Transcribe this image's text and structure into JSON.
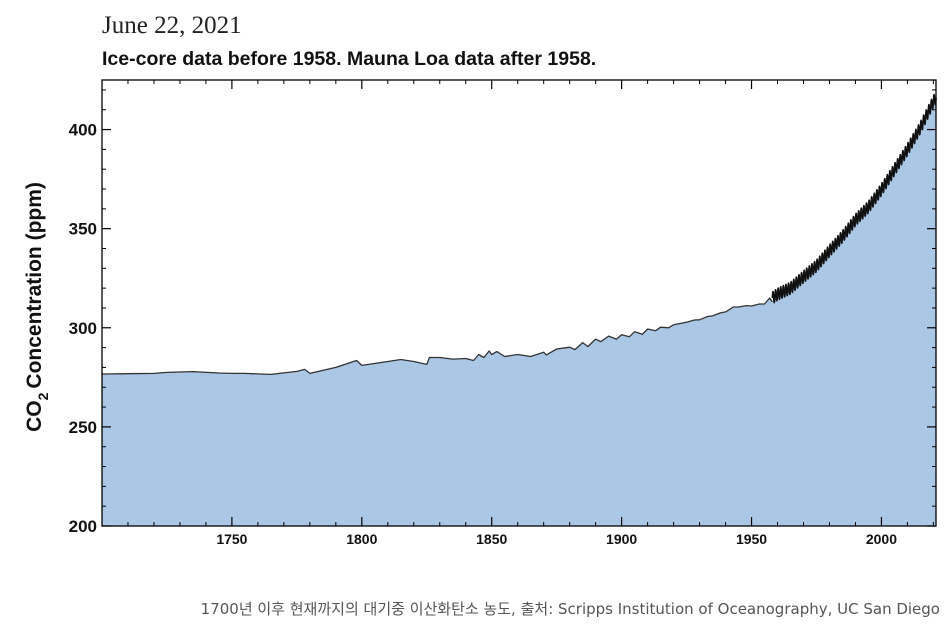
{
  "header": {
    "date": "June 22, 2021"
  },
  "caption": "1700년 이후 현재까지의 대기중 이산화탄소 농도, 출처: Scripps Institution of Oceanography, UC San Diego",
  "colors": {
    "fill": "#abc7e6",
    "line": "#333333",
    "recent_line": "#111111",
    "axis": "#000000"
  },
  "chart_data": {
    "type": "area",
    "title": "Ice-core data before 1958. Mauna Loa data after 1958.",
    "xlabel": "",
    "ylabel": "Concentration (ppm)",
    "ylabel_prefix": "CO",
    "ylabel_subscript": "2",
    "xlim": [
      1700,
      2021
    ],
    "ylim": [
      200,
      425
    ],
    "x_ticks": [
      1750,
      1800,
      1850,
      1900,
      1950,
      2000
    ],
    "y_ticks": [
      200,
      250,
      300,
      350,
      400
    ],
    "grid": false,
    "series": [
      {
        "name": "Ice-core data",
        "x": [
          1700,
          1720,
          1725,
          1735,
          1745,
          1750,
          1755,
          1765,
          1775,
          1778,
          1780,
          1790,
          1798,
          1800,
          1810,
          1815,
          1820,
          1825,
          1826,
          1830,
          1835,
          1840,
          1843,
          1845,
          1847,
          1849,
          1850,
          1852,
          1855,
          1860,
          1865,
          1870,
          1871,
          1875,
          1880,
          1882,
          1885,
          1887,
          1890,
          1892,
          1895,
          1898,
          1900,
          1903,
          1905,
          1908,
          1910,
          1913,
          1915,
          1918,
          1920,
          1923,
          1925,
          1928,
          1930,
          1933,
          1935,
          1938,
          1940,
          1943,
          1945,
          1948,
          1950,
          1953,
          1955,
          1957,
          1958
        ],
        "values": [
          276.7,
          277,
          277.5,
          277.9,
          277.2,
          277,
          277,
          276.5,
          278,
          279,
          277,
          280,
          283.5,
          281,
          283,
          284,
          283,
          281.5,
          285,
          285,
          284.2,
          284.5,
          283.5,
          286.5,
          285,
          288.3,
          286.5,
          288,
          285.5,
          286.5,
          285.5,
          287.7,
          286.3,
          289.3,
          290.2,
          289,
          292.5,
          290.5,
          294.3,
          293,
          295.8,
          294.3,
          296.5,
          295.5,
          298,
          296.7,
          299.4,
          298.5,
          300.3,
          300,
          301.5,
          302.3,
          302.8,
          303.9,
          304,
          305.7,
          306,
          307.5,
          308,
          310.5,
          310.5,
          311.2,
          311,
          312,
          312,
          315,
          313
        ]
      },
      {
        "name": "Mauna Loa data",
        "x": [
          1958,
          1960,
          1965,
          1970,
          1975,
          1980,
          1985,
          1990,
          1995,
          2000,
          2005,
          2010,
          2015,
          2020,
          2021
        ],
        "values": [
          315,
          316.9,
          320,
          325.7,
          331.2,
          338.8,
          346,
          354.4,
          360.9,
          369.7,
          379.8,
          389.9,
          401,
          414.2,
          416
        ]
      }
    ]
  }
}
